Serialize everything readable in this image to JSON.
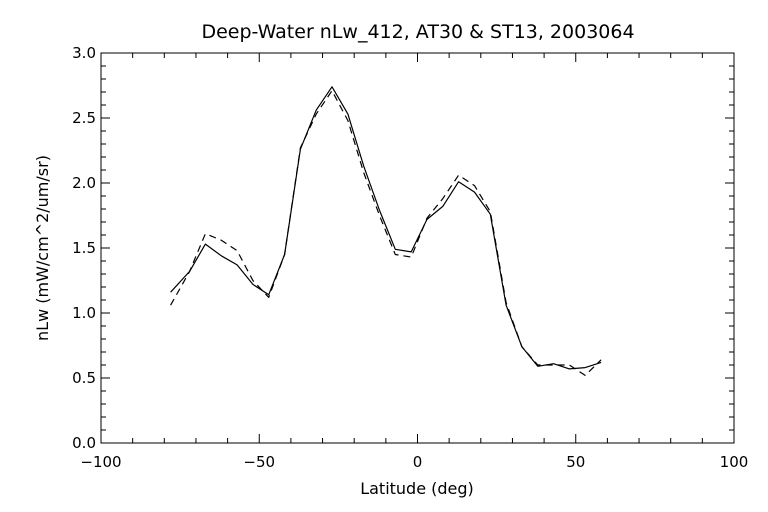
{
  "chart_data": {
    "type": "line",
    "title": "Deep-Water nLw_412, AT30 & ST13, 2003064",
    "xlabel": "Latitude (deg)",
    "ylabel": "nLw (mW/cm^2/um/sr)",
    "xlim": [
      -100,
      100
    ],
    "ylim": [
      0.0,
      3.0
    ],
    "x_ticks": [
      -100,
      -50,
      0,
      50,
      100
    ],
    "x_tick_labels": [
      "−100",
      "−50",
      "0",
      "50",
      "100"
    ],
    "y_ticks": [
      0.0,
      0.5,
      1.0,
      1.5,
      2.0,
      2.5,
      3.0
    ],
    "y_tick_labels": [
      "0.0",
      "0.5",
      "1.0",
      "1.5",
      "2.0",
      "2.5",
      "3.0"
    ],
    "grid": false,
    "series": [
      {
        "style": "solid",
        "x": [
          -78,
          -72,
          -67,
          -62,
          -57,
          -52,
          -47,
          -42,
          -37,
          -32,
          -27,
          -22,
          -17,
          -12,
          -7,
          -2,
          3,
          8,
          13,
          18,
          23,
          28,
          33,
          38,
          43,
          48,
          53,
          58
        ],
        "y": [
          1.16,
          1.32,
          1.53,
          1.44,
          1.37,
          1.22,
          1.14,
          1.45,
          2.26,
          2.56,
          2.74,
          2.53,
          2.13,
          1.79,
          1.49,
          1.47,
          1.72,
          1.82,
          2.01,
          1.93,
          1.76,
          1.06,
          0.74,
          0.59,
          0.61,
          0.57,
          0.58,
          0.62
        ]
      },
      {
        "style": "dashed",
        "x": [
          -78,
          -72,
          -67,
          -62,
          -57,
          -52,
          -47,
          -42,
          -37,
          -32,
          -27,
          -22,
          -17,
          -12,
          -7,
          -2,
          3,
          8,
          13,
          18,
          23,
          28,
          33,
          38,
          43,
          48,
          53,
          58
        ],
        "y": [
          1.06,
          1.32,
          1.61,
          1.56,
          1.48,
          1.25,
          1.12,
          1.45,
          2.27,
          2.53,
          2.71,
          2.48,
          2.08,
          1.75,
          1.45,
          1.43,
          1.73,
          1.88,
          2.06,
          1.98,
          1.78,
          1.08,
          0.74,
          0.6,
          0.6,
          0.6,
          0.52,
          0.64
        ]
      }
    ]
  }
}
